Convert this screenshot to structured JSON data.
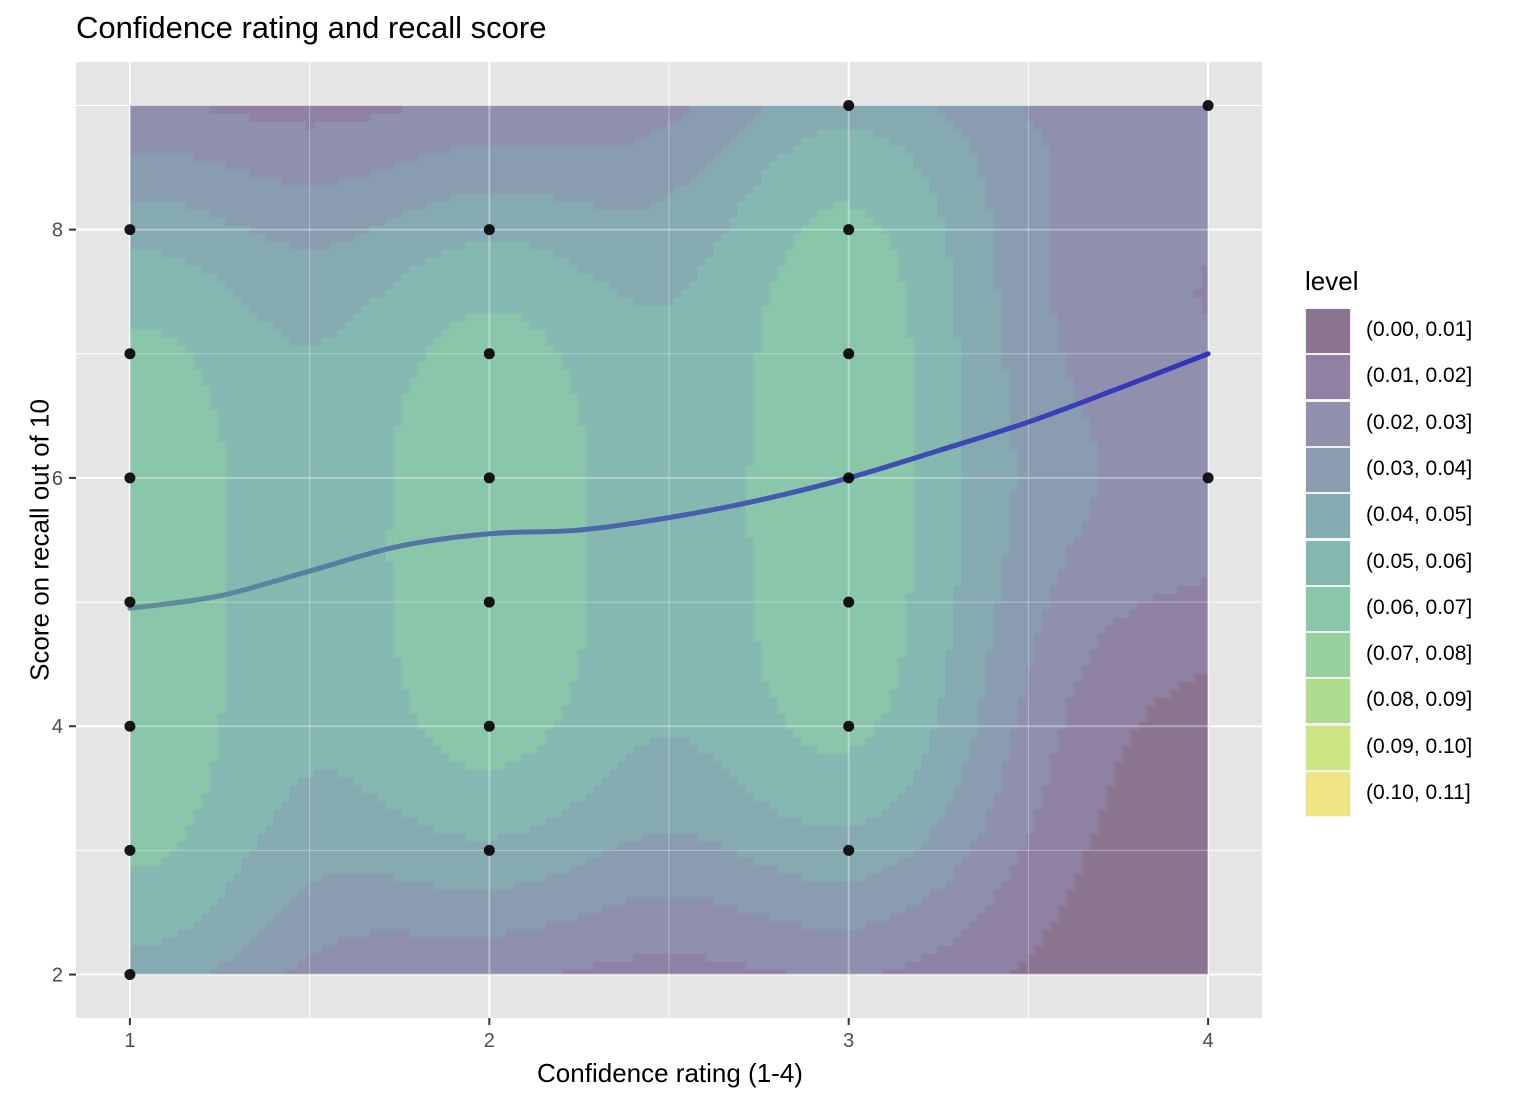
{
  "chart_data": {
    "type": "scatter",
    "title": "Confidence rating and recall score",
    "xlabel": "Confidence rating (1-4)",
    "ylabel": "Score on recall out of 10",
    "xlim": [
      0.85,
      4.15
    ],
    "ylim": [
      1.65,
      9.35
    ],
    "x_ticks": [
      "1",
      "2",
      "3",
      "4"
    ],
    "y_ticks": [
      "2",
      "4",
      "6",
      "8"
    ],
    "grid": true,
    "legend_position": "right",
    "legend_title": "level",
    "density_levels": [
      {
        "label": "(0.00, 0.01]",
        "color": "#8b7490"
      },
      {
        "label": "(0.01, 0.02]",
        "color": "#8f81a4"
      },
      {
        "label": "(0.02, 0.03]",
        "color": "#8f90ad"
      },
      {
        "label": "(0.03, 0.04]",
        "color": "#8a9db0"
      },
      {
        "label": "(0.04, 0.05]",
        "color": "#86aab1"
      },
      {
        "label": "(0.05, 0.06]",
        "color": "#85b8b0"
      },
      {
        "label": "(0.06, 0.07]",
        "color": "#89c6aa"
      },
      {
        "label": "(0.07, 0.08]",
        "color": "#96d19f"
      },
      {
        "label": "(0.08, 0.09]",
        "color": "#aedc8f"
      },
      {
        "label": "(0.09, 0.10]",
        "color": "#cde581"
      },
      {
        "label": "(0.10, 0.11]",
        "color": "#efe584"
      }
    ],
    "points": [
      {
        "x": 1,
        "y": 8
      },
      {
        "x": 1,
        "y": 7
      },
      {
        "x": 1,
        "y": 6
      },
      {
        "x": 1,
        "y": 5
      },
      {
        "x": 1,
        "y": 4
      },
      {
        "x": 1,
        "y": 3
      },
      {
        "x": 1,
        "y": 2
      },
      {
        "x": 2,
        "y": 8
      },
      {
        "x": 2,
        "y": 7
      },
      {
        "x": 2,
        "y": 6
      },
      {
        "x": 2,
        "y": 5
      },
      {
        "x": 2,
        "y": 4
      },
      {
        "x": 2,
        "y": 3
      },
      {
        "x": 3,
        "y": 9
      },
      {
        "x": 3,
        "y": 8
      },
      {
        "x": 3,
        "y": 7
      },
      {
        "x": 3,
        "y": 6
      },
      {
        "x": 3,
        "y": 5
      },
      {
        "x": 3,
        "y": 4
      },
      {
        "x": 3,
        "y": 3
      },
      {
        "x": 4,
        "y": 9
      },
      {
        "x": 4,
        "y": 6
      }
    ],
    "smooth_line": {
      "x": [
        1.0,
        1.25,
        1.5,
        1.75,
        2.0,
        2.25,
        2.5,
        2.75,
        3.0,
        3.25,
        3.5,
        3.75,
        4.0
      ],
      "y": [
        4.95,
        5.05,
        5.25,
        5.45,
        5.55,
        5.58,
        5.68,
        5.82,
        6.0,
        6.22,
        6.45,
        6.72,
        7.0
      ],
      "color_start": "#5f8f9a",
      "color_end": "#3333bb"
    }
  }
}
